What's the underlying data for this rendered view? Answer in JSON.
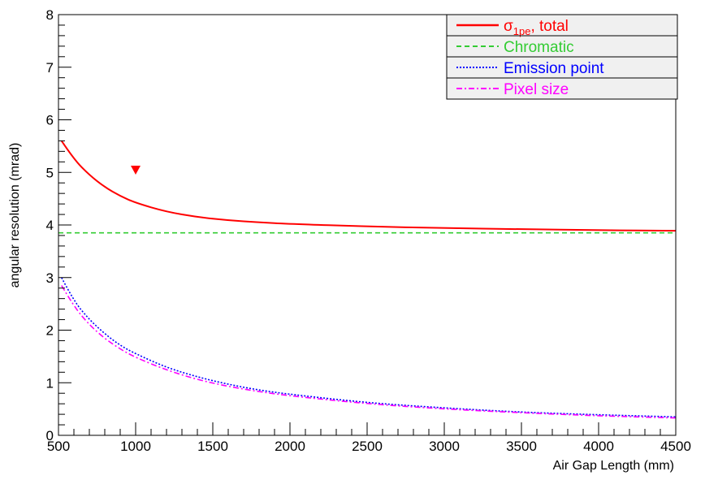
{
  "chart_data": {
    "type": "line",
    "title": "",
    "xlabel": "Air Gap Length (mm)",
    "ylabel": "angular resolution (mrad)",
    "xlim": [
      500,
      4500
    ],
    "ylim": [
      0,
      8
    ],
    "x_ticks": [
      "500",
      "1000",
      "1500",
      "2000",
      "2500",
      "3000",
      "3500",
      "4000",
      "4500"
    ],
    "y_ticks": [
      "0",
      "1",
      "2",
      "3",
      "4",
      "5",
      "6",
      "7",
      "8"
    ],
    "grid": false,
    "legend_position": "top-right",
    "legend": [
      {
        "name_main": "σ",
        "name_sub": "1pe",
        "name_rest": ", total",
        "color": "#ff0000",
        "dash": "solid"
      },
      {
        "name_main": "Chromatic",
        "name_sub": "",
        "name_rest": "",
        "color": "#33cc33",
        "dash": "dashed"
      },
      {
        "name_main": "Emission point",
        "name_sub": "",
        "name_rest": "",
        "color": "#0000ff",
        "dash": "dotted"
      },
      {
        "name_main": "Pixel size",
        "name_sub": "",
        "name_rest": "",
        "color": "#ff00ff",
        "dash": "dashdot"
      }
    ],
    "series": [
      {
        "color": "#ff0000",
        "dash": "solid",
        "x": [
          520,
          600,
          700,
          800,
          900,
          1000,
          1200,
          1400,
          1600,
          1800,
          2000,
          2500,
          3000,
          3500,
          4000,
          4500
        ],
        "y": [
          5.6,
          5.25,
          4.95,
          4.72,
          4.55,
          4.42,
          4.25,
          4.15,
          4.09,
          4.05,
          4.02,
          3.97,
          3.94,
          3.92,
          3.9,
          3.89
        ]
      },
      {
        "color": "#33cc33",
        "dash": "dashed",
        "x": [
          500,
          4500
        ],
        "y": [
          3.85,
          3.85
        ]
      },
      {
        "color": "#0000ff",
        "dash": "dotted",
        "x": [
          520,
          600,
          700,
          800,
          900,
          1000,
          1200,
          1400,
          1600,
          1800,
          2000,
          2500,
          3000,
          3500,
          4000,
          4500
        ],
        "y": [
          3.0,
          2.55,
          2.2,
          1.93,
          1.71,
          1.55,
          1.29,
          1.11,
          0.97,
          0.86,
          0.78,
          0.62,
          0.52,
          0.44,
          0.39,
          0.35
        ]
      },
      {
        "color": "#ff00ff",
        "dash": "dashdot",
        "x": [
          520,
          600,
          700,
          800,
          900,
          1000,
          1200,
          1400,
          1600,
          1800,
          2000,
          2500,
          3000,
          3500,
          4000,
          4500
        ],
        "y": [
          2.85,
          2.45,
          2.1,
          1.84,
          1.64,
          1.48,
          1.24,
          1.06,
          0.93,
          0.83,
          0.75,
          0.6,
          0.5,
          0.43,
          0.37,
          0.33
        ]
      }
    ],
    "markers": [
      {
        "x": 1000,
        "y": 5.05,
        "shape": "triangle-down",
        "color": "#ff0000"
      }
    ]
  }
}
